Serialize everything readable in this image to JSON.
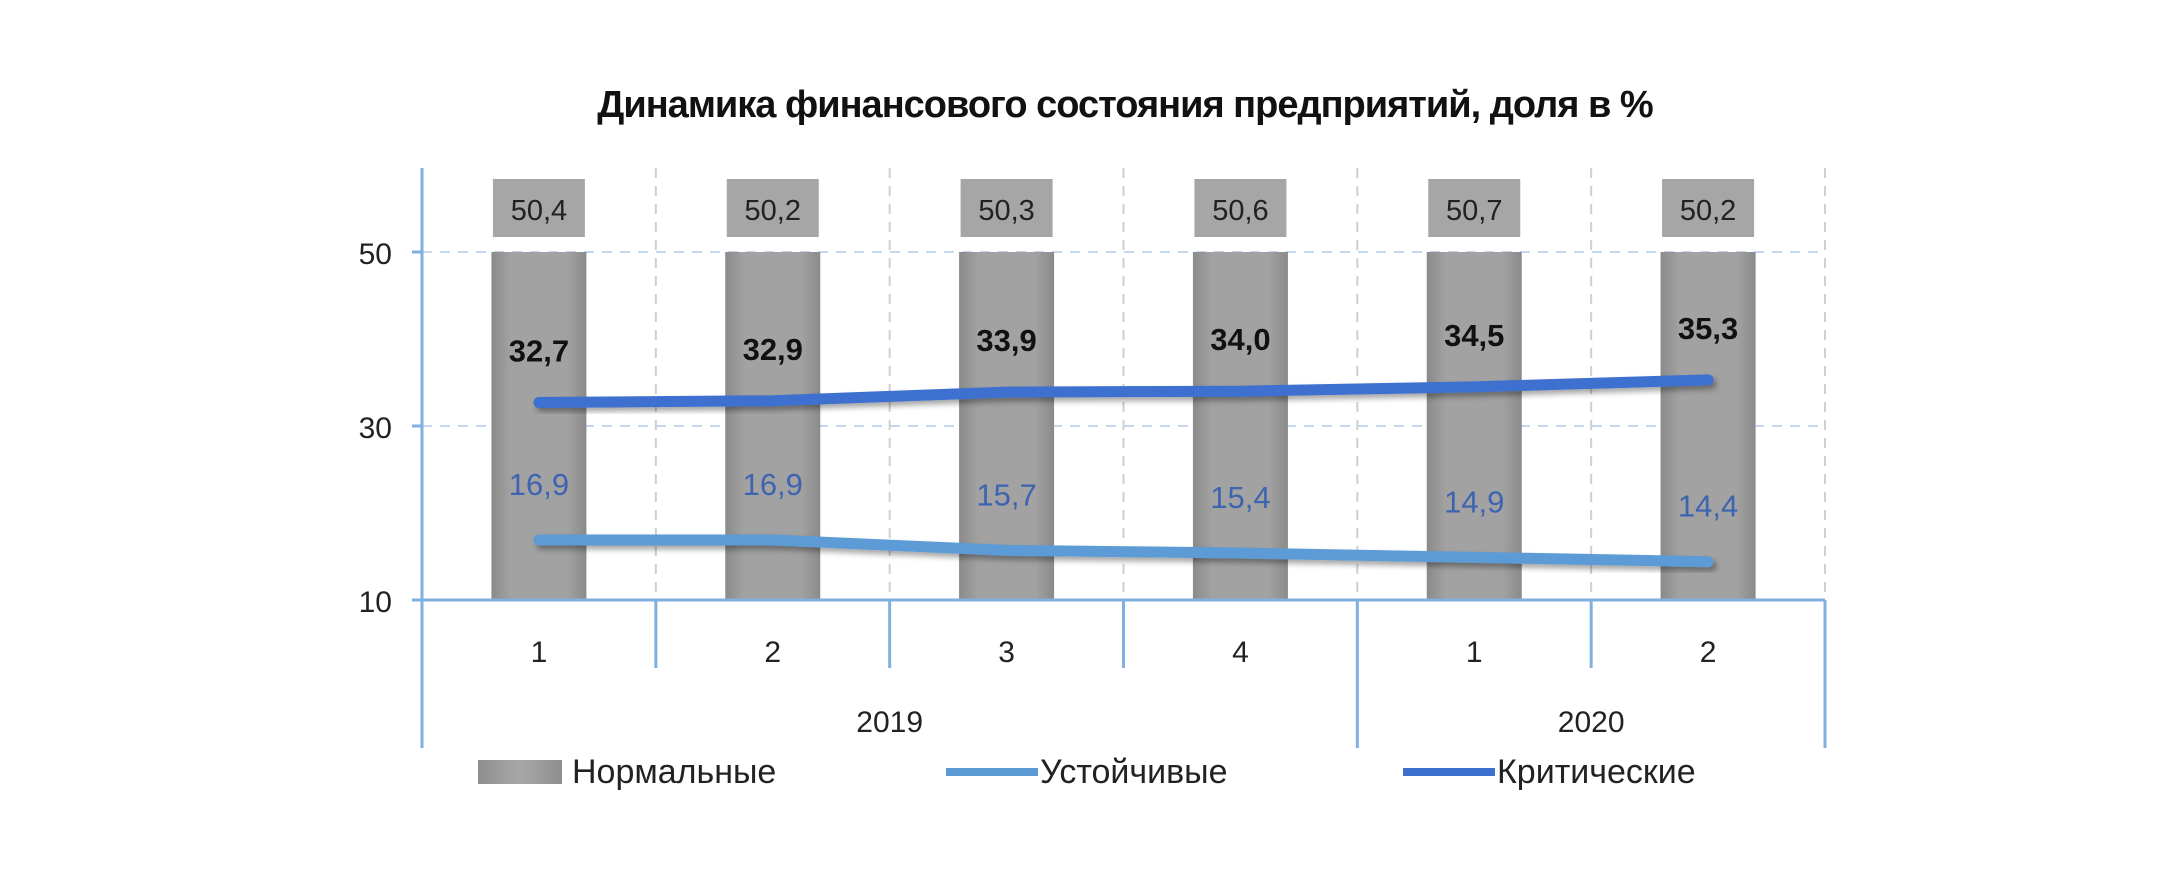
{
  "chart_data": {
    "type": "bar",
    "title": "Динамика финансового состояния предприятий, доля в %",
    "xlabel": "",
    "ylabel": "",
    "ylim": [
      10,
      60
    ],
    "yticks": [
      10,
      30,
      50
    ],
    "ytick_labels": [
      "10",
      "30",
      "50"
    ],
    "grid": true,
    "legend_position": "bottom",
    "categories": [
      "1",
      "2",
      "3",
      "4",
      "1",
      "2"
    ],
    "category_groups": [
      {
        "label": "2019",
        "span": 4
      },
      {
        "label": "2020",
        "span": 2
      }
    ],
    "series": [
      {
        "name": "Нормальные",
        "type": "bar",
        "color": "#a0a0a0",
        "values": [
          50.4,
          50.2,
          50.3,
          50.6,
          50.7,
          50.2
        ],
        "labels": [
          "50,4",
          "50,2",
          "50,3",
          "50,6",
          "50,7",
          "50,2"
        ]
      },
      {
        "name": "Устойчивые",
        "type": "line",
        "color": "#5b9bd5",
        "label_color": "#3e63b0",
        "values": [
          16.9,
          16.9,
          15.7,
          15.4,
          14.9,
          14.4
        ],
        "labels": [
          "16,9",
          "16,9",
          "15,7",
          "15,4",
          "14,9",
          "14,4"
        ]
      },
      {
        "name": "Критические",
        "type": "line",
        "color": "#3d6fcf",
        "label_color": "#111111",
        "values": [
          32.7,
          32.9,
          33.9,
          34.0,
          34.5,
          35.3
        ],
        "labels": [
          "32,7",
          "32,9",
          "33,9",
          "34,0",
          "34,5",
          "35,3"
        ]
      }
    ]
  },
  "colors": {
    "axis": "#7fb0e0",
    "grid": "#c5d6ee",
    "separator": "#cfcfcf",
    "label_box": "#a6a6a6"
  }
}
